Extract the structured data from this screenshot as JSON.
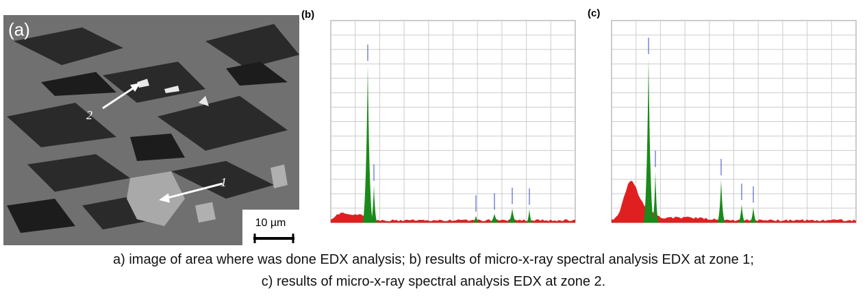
{
  "figure": {
    "panels": {
      "a": {
        "label": "(a)",
        "arrow_labels": [
          "1",
          "2"
        ],
        "scale_bar": "10 µm"
      },
      "b": {
        "label": "(b)"
      },
      "c": {
        "label": "(c)"
      }
    },
    "caption": [
      "a) image of area where was done EDX analysis; b) results of micro-x-ray spectral analysis EDX at zone 1;",
      "c) results of micro-x-ray spectral analysis EDX at zone 2."
    ]
  }
}
